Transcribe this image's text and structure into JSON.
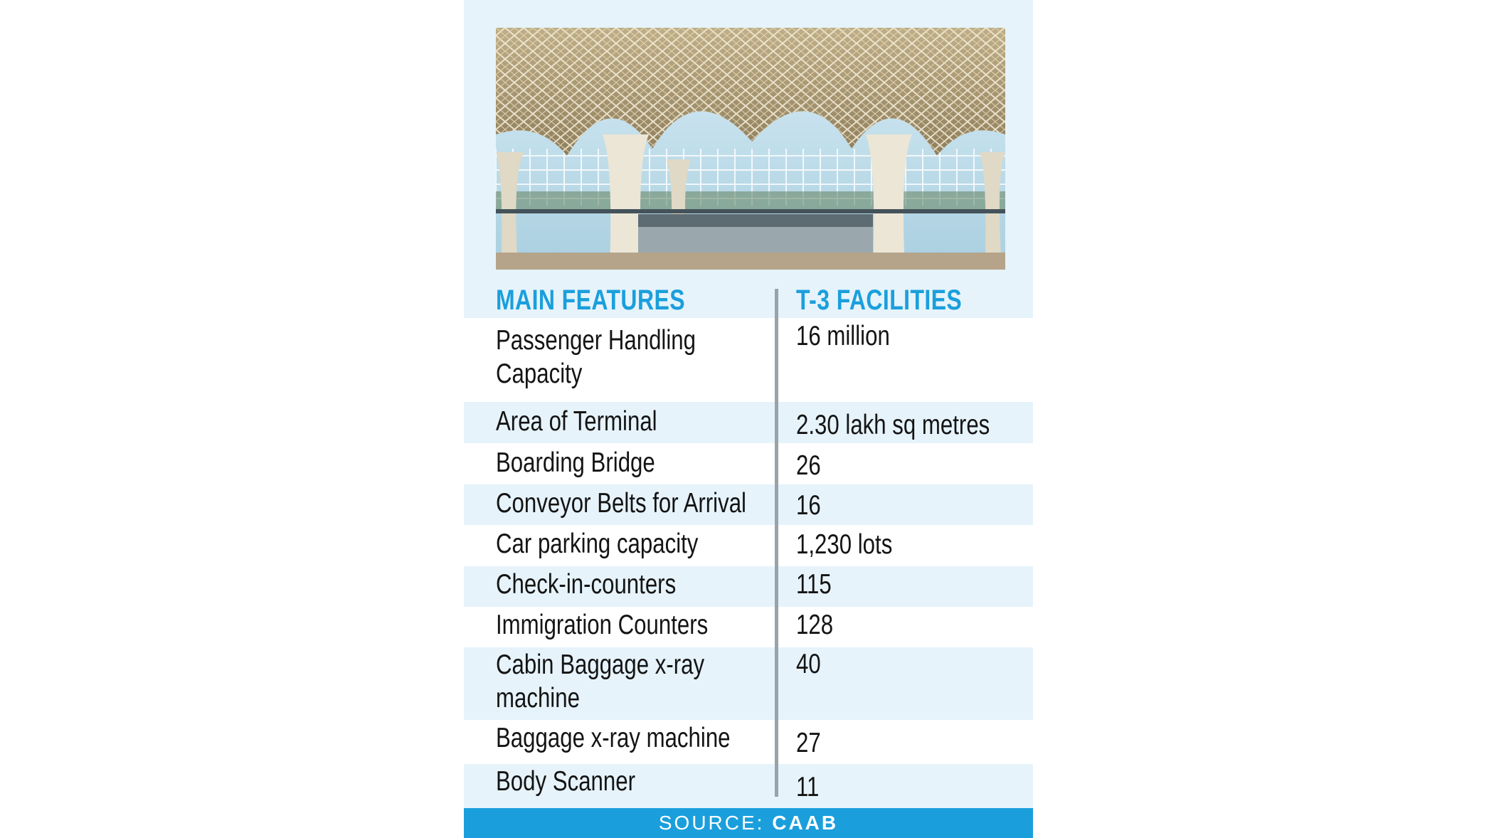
{
  "headers": {
    "left": "MAIN FEATURES",
    "right": "T-3 FACILITIES"
  },
  "rows": [
    {
      "feature": "Passenger Handling",
      "feature2": "Capacity",
      "value": "16 million",
      "shaded": false
    },
    {
      "feature": "Area of Terminal",
      "value": "2.30 lakh sq metres",
      "shaded": true
    },
    {
      "feature": "Boarding Bridge",
      "value": "26",
      "shaded": false
    },
    {
      "feature": "Conveyor Belts for Arrival",
      "value": "16",
      "shaded": true
    },
    {
      "feature": "Car parking capacity",
      "value": "1,230 lots",
      "shaded": false
    },
    {
      "feature": "Check-in-counters",
      "value": "115",
      "shaded": true
    },
    {
      "feature": "Immigration Counters",
      "value": "128",
      "shaded": false
    },
    {
      "feature": "Cabin Baggage x-ray",
      "feature2": "machine",
      "value": "40",
      "shaded": true
    },
    {
      "feature": "Baggage x-ray machine",
      "value": "27",
      "shaded": false
    },
    {
      "feature": "Body Scanner",
      "value": "11",
      "shaded": true
    }
  ],
  "source": {
    "label": "SOURCE:",
    "value": "CAAB"
  },
  "colors": {
    "accent": "#1a9fdc",
    "row_shade": "#e6f3fb",
    "divider": "#9aa3aa",
    "text": "#141414"
  }
}
